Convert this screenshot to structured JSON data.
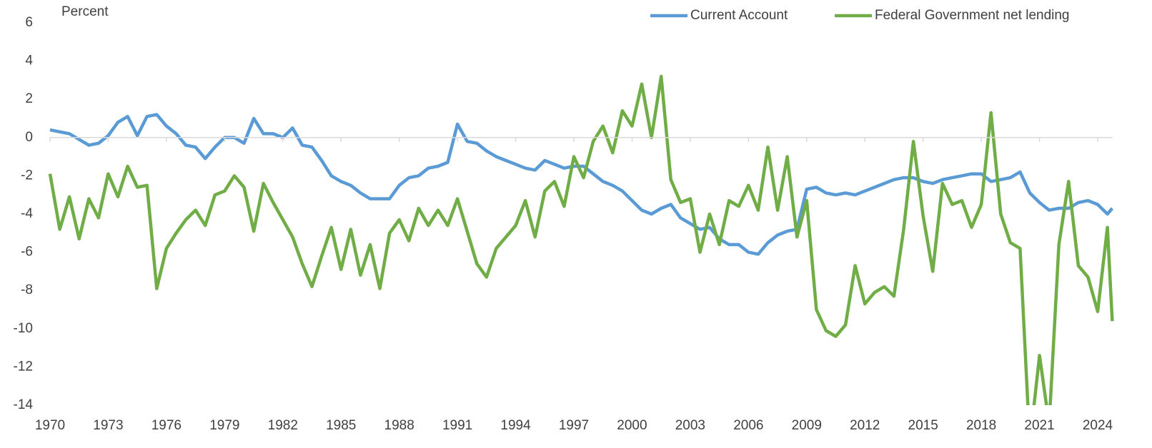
{
  "chart_data": {
    "type": "line",
    "y_axis_label": "Percent",
    "x": [
      1970,
      1970.5,
      1971,
      1971.5,
      1972,
      1972.5,
      1973,
      1973.5,
      1974,
      1974.5,
      1975,
      1975.5,
      1976,
      1976.5,
      1977,
      1977.5,
      1978,
      1978.5,
      1979,
      1979.5,
      1980,
      1980.5,
      1981,
      1981.5,
      1982,
      1982.5,
      1983,
      1983.5,
      1984,
      1984.5,
      1985,
      1985.5,
      1986,
      1986.5,
      1987,
      1987.5,
      1988,
      1988.5,
      1989,
      1989.5,
      1990,
      1990.5,
      1991,
      1991.5,
      1992,
      1992.5,
      1993,
      1993.5,
      1994,
      1994.5,
      1995,
      1995.5,
      1996,
      1996.5,
      1997,
      1997.5,
      1998,
      1998.5,
      1999,
      1999.5,
      2000,
      2000.5,
      2001,
      2001.5,
      2002,
      2002.5,
      2003,
      2003.5,
      2004,
      2004.5,
      2005,
      2005.5,
      2006,
      2006.5,
      2007,
      2007.5,
      2008,
      2008.5,
      2009,
      2009.5,
      2010,
      2010.5,
      2011,
      2011.5,
      2012,
      2012.5,
      2013,
      2013.5,
      2014,
      2014.5,
      2015,
      2015.5,
      2016,
      2016.5,
      2017,
      2017.5,
      2018,
      2018.5,
      2019,
      2019.5,
      2020,
      2020.5,
      2021,
      2021.5,
      2022,
      2022.5,
      2023,
      2023.5,
      2024,
      2024.5,
      2024.75
    ],
    "series": [
      {
        "name": "Current Account",
        "color": "#5b9bd5",
        "values": [
          0.4,
          0.3,
          0.2,
          -0.1,
          -0.4,
          -0.3,
          0.1,
          0.8,
          1.1,
          0.1,
          1.1,
          1.2,
          0.6,
          0.2,
          -0.4,
          -0.5,
          -1.1,
          -0.5,
          0.0,
          0.0,
          -0.3,
          1.0,
          0.2,
          0.2,
          0.0,
          0.5,
          -0.4,
          -0.5,
          -1.2,
          -2.0,
          -2.3,
          -2.5,
          -2.9,
          -3.2,
          -3.2,
          -3.2,
          -2.5,
          -2.1,
          -2.0,
          -1.6,
          -1.5,
          -1.3,
          0.7,
          -0.2,
          -0.3,
          -0.7,
          -1.0,
          -1.2,
          -1.4,
          -1.6,
          -1.7,
          -1.2,
          -1.4,
          -1.6,
          -1.5,
          -1.5,
          -1.9,
          -2.3,
          -2.5,
          -2.8,
          -3.3,
          -3.8,
          -4.0,
          -3.7,
          -3.5,
          -4.2,
          -4.5,
          -4.8,
          -4.7,
          -5.3,
          -5.6,
          -5.6,
          -6.0,
          -6.1,
          -5.5,
          -5.1,
          -4.9,
          -4.8,
          -2.7,
          -2.6,
          -2.9,
          -3.0,
          -2.9,
          -3.0,
          -2.8,
          -2.6,
          -2.4,
          -2.2,
          -2.1,
          -2.1,
          -2.3,
          -2.4,
          -2.2,
          -2.1,
          -2.0,
          -1.9,
          -1.9,
          -2.3,
          -2.2,
          -2.1,
          -1.8,
          -2.9,
          -3.4,
          -3.8,
          -3.7,
          -3.7,
          -3.4,
          -3.3,
          -3.5,
          -4.0,
          -3.7
        ]
      },
      {
        "name": "Federal Government net lending",
        "color": "#70ad47",
        "values": [
          -1.9,
          -4.8,
          -3.1,
          -5.3,
          -3.2,
          -4.2,
          -1.9,
          -3.1,
          -1.5,
          -2.6,
          -2.5,
          -7.9,
          -5.8,
          -5.0,
          -4.3,
          -3.8,
          -4.6,
          -3.0,
          -2.8,
          -2.0,
          -2.6,
          -4.9,
          -2.4,
          -3.4,
          -4.3,
          -5.2,
          -6.6,
          -7.8,
          -6.2,
          -4.7,
          -6.9,
          -4.8,
          -7.2,
          -5.6,
          -7.9,
          -5.0,
          -4.3,
          -5.4,
          -3.7,
          -4.6,
          -3.8,
          -4.6,
          -3.2,
          -4.9,
          -6.6,
          -7.3,
          -5.8,
          -5.2,
          -4.6,
          -3.3,
          -5.2,
          -2.8,
          -2.3,
          -3.6,
          -1.0,
          -2.1,
          -0.2,
          0.6,
          -0.8,
          1.4,
          0.6,
          2.8,
          0.0,
          3.2,
          -2.2,
          -3.4,
          -3.2,
          -6.0,
          -4.0,
          -5.6,
          -3.3,
          -3.6,
          -2.5,
          -3.8,
          -0.5,
          -3.8,
          -1.0,
          -5.2,
          -3.3,
          -9.0,
          -10.1,
          -10.4,
          -9.8,
          -6.7,
          -8.7,
          -8.1,
          -7.8,
          -8.3,
          -4.8,
          -0.2,
          -4.1,
          -7.0,
          -2.4,
          -3.5,
          -3.3,
          -4.7,
          -3.5,
          1.3,
          -4.0,
          -5.5,
          -5.8,
          -16,
          -11.4,
          -15,
          -5.6,
          -2.3,
          -6.7,
          -7.3,
          -9.1,
          -4.7,
          -9.6
        ]
      }
    ],
    "xlim": [
      1970,
      2024.8
    ],
    "xticks": [
      1970,
      1973,
      1976,
      1979,
      1982,
      1985,
      1988,
      1991,
      1994,
      1997,
      2000,
      2003,
      2006,
      2009,
      2012,
      2015,
      2018,
      2021,
      2024
    ],
    "ylim": [
      -14,
      6
    ],
    "yticks": [
      -14,
      -12,
      -10,
      -8,
      -6,
      -4,
      -2,
      0,
      2,
      4,
      6
    ],
    "legend": "top-right"
  }
}
